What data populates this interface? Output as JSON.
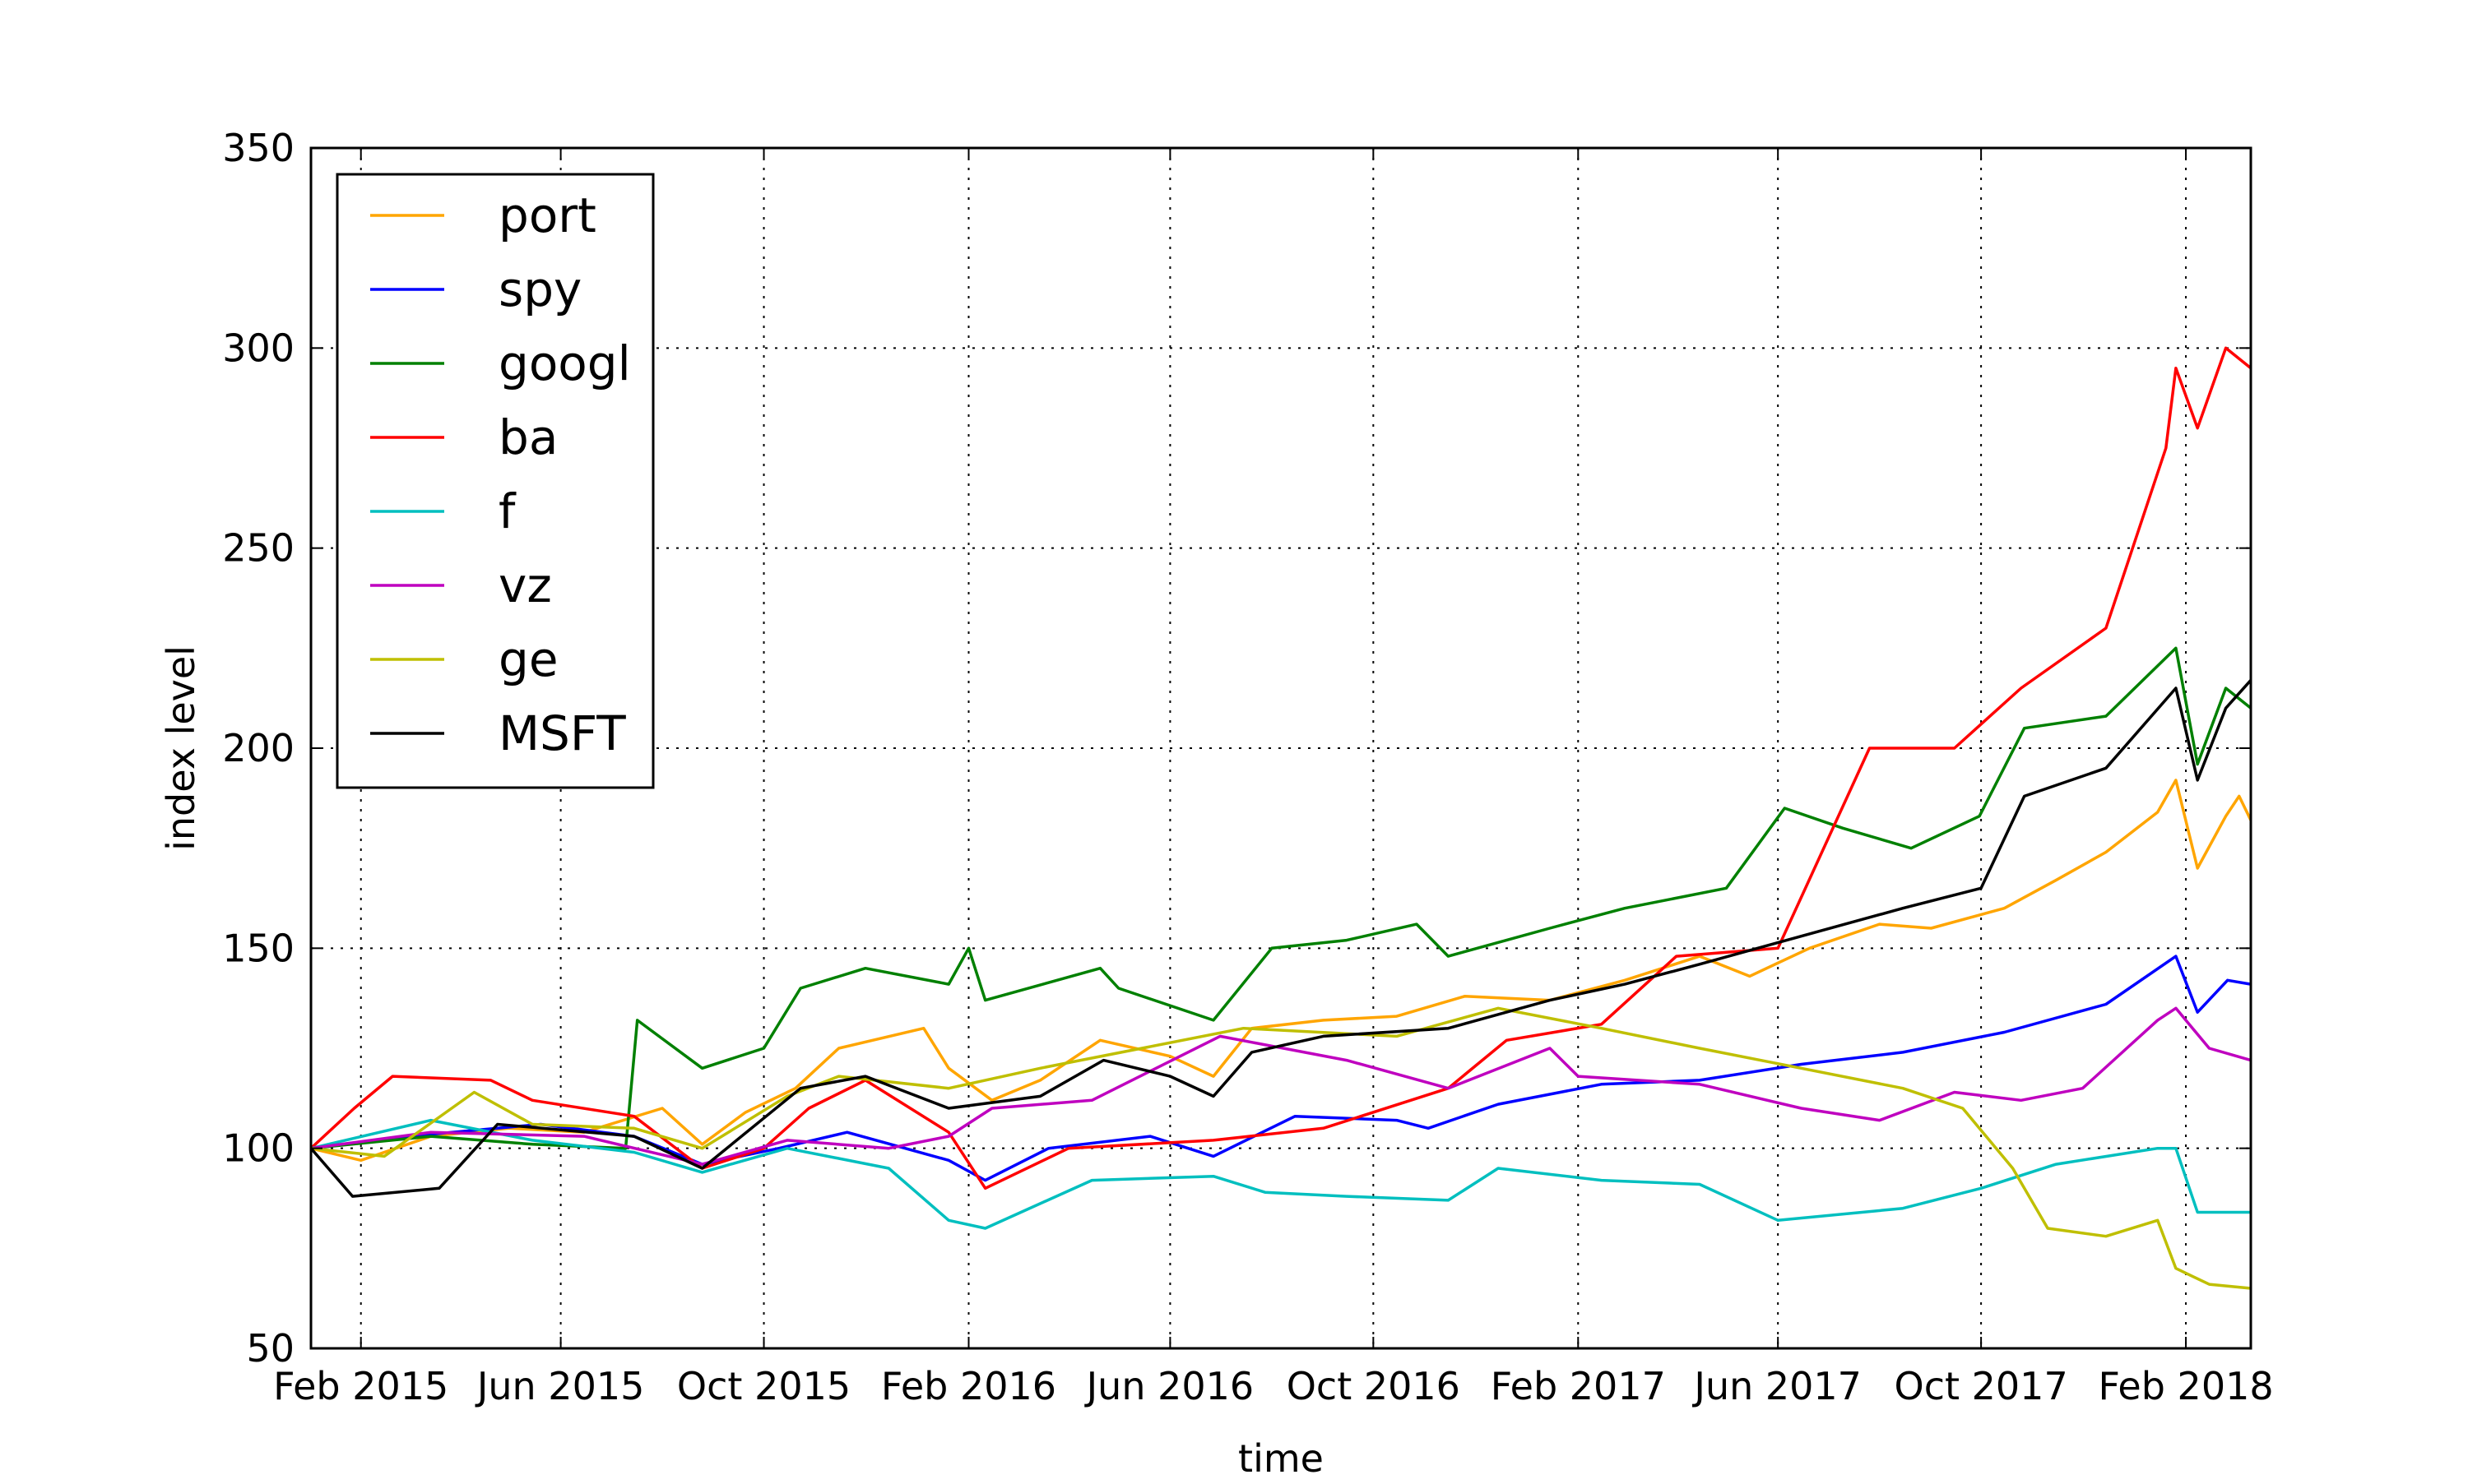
{
  "chart_data": {
    "type": "line",
    "title": "",
    "xlabel": "time",
    "ylabel": "index level",
    "ylim": [
      50,
      350
    ],
    "yticks": [
      50,
      100,
      150,
      200,
      250,
      300,
      350
    ],
    "xlim": [
      "2015-01-02",
      "2018-03-12"
    ],
    "xticks": [
      {
        "date": "2015-02-01",
        "label": "Feb 2015"
      },
      {
        "date": "2015-06-01",
        "label": "Jun 2015"
      },
      {
        "date": "2015-10-01",
        "label": "Oct 2015"
      },
      {
        "date": "2016-02-01",
        "label": "Feb 2016"
      },
      {
        "date": "2016-06-01",
        "label": "Jun 2016"
      },
      {
        "date": "2016-10-01",
        "label": "Oct 2016"
      },
      {
        "date": "2017-02-01",
        "label": "Feb 2017"
      },
      {
        "date": "2017-06-01",
        "label": "Jun 2017"
      },
      {
        "date": "2017-10-01",
        "label": "Oct 2017"
      },
      {
        "date": "2018-02-01",
        "label": "Feb 2018"
      }
    ],
    "grid": true,
    "legend_position": "top-left",
    "series": [
      {
        "name": "port",
        "color": "#ffa500",
        "points": [
          [
            "2015-01-02",
            100
          ],
          [
            "2015-02-01",
            97
          ],
          [
            "2015-03-15",
            103
          ],
          [
            "2015-05-01",
            105
          ],
          [
            "2015-06-15",
            104
          ],
          [
            "2015-08-01",
            110
          ],
          [
            "2015-08-25",
            101
          ],
          [
            "2015-09-20",
            109
          ],
          [
            "2015-10-20",
            115
          ],
          [
            "2015-11-15",
            125
          ],
          [
            "2016-01-05",
            130
          ],
          [
            "2016-01-20",
            120
          ],
          [
            "2016-02-15",
            112
          ],
          [
            "2016-03-15",
            117
          ],
          [
            "2016-04-20",
            127
          ],
          [
            "2016-06-01",
            123
          ],
          [
            "2016-06-27",
            118
          ],
          [
            "2016-07-20",
            130
          ],
          [
            "2016-09-01",
            132
          ],
          [
            "2016-10-15",
            133
          ],
          [
            "2016-11-25",
            138
          ],
          [
            "2017-01-15",
            137
          ],
          [
            "2017-03-01",
            142
          ],
          [
            "2017-04-15",
            148
          ],
          [
            "2017-05-15",
            143
          ],
          [
            "2017-06-20",
            150
          ],
          [
            "2017-08-01",
            156
          ],
          [
            "2017-09-01",
            155
          ],
          [
            "2017-10-15",
            160
          ],
          [
            "2017-11-15",
            167
          ],
          [
            "2017-12-15",
            174
          ],
          [
            "2018-01-15",
            184
          ],
          [
            "2018-01-26",
            192
          ],
          [
            "2018-02-08",
            170
          ],
          [
            "2018-02-25",
            183
          ],
          [
            "2018-03-05",
            188
          ],
          [
            "2018-03-12",
            182
          ]
        ]
      },
      {
        "name": "spy",
        "color": "#0000ff",
        "points": [
          [
            "2015-01-02",
            100
          ],
          [
            "2015-03-01",
            103
          ],
          [
            "2015-05-20",
            106
          ],
          [
            "2015-07-15",
            103
          ],
          [
            "2015-08-25",
            96
          ],
          [
            "2015-10-10",
            100
          ],
          [
            "2015-11-20",
            104
          ],
          [
            "2016-01-20",
            97
          ],
          [
            "2016-02-11",
            92
          ],
          [
            "2016-03-20",
            100
          ],
          [
            "2016-05-20",
            103
          ],
          [
            "2016-06-27",
            98
          ],
          [
            "2016-08-15",
            108
          ],
          [
            "2016-10-15",
            107
          ],
          [
            "2016-11-03",
            105
          ],
          [
            "2016-12-15",
            111
          ],
          [
            "2017-02-15",
            116
          ],
          [
            "2017-04-15",
            117
          ],
          [
            "2017-06-15",
            121
          ],
          [
            "2017-08-15",
            124
          ],
          [
            "2017-10-15",
            129
          ],
          [
            "2017-12-15",
            136
          ],
          [
            "2018-01-26",
            148
          ],
          [
            "2018-02-08",
            134
          ],
          [
            "2018-02-26",
            142
          ],
          [
            "2018-03-12",
            141
          ]
        ]
      },
      {
        "name": "googl",
        "color": "#008000",
        "points": [
          [
            "2015-01-02",
            100
          ],
          [
            "2015-03-15",
            103
          ],
          [
            "2015-05-15",
            101
          ],
          [
            "2015-07-10",
            100
          ],
          [
            "2015-07-17",
            132
          ],
          [
            "2015-08-25",
            120
          ],
          [
            "2015-10-01",
            125
          ],
          [
            "2015-10-23",
            140
          ],
          [
            "2015-12-01",
            145
          ],
          [
            "2016-01-20",
            141
          ],
          [
            "2016-02-01",
            150
          ],
          [
            "2016-02-11",
            137
          ],
          [
            "2016-04-20",
            145
          ],
          [
            "2016-05-01",
            140
          ],
          [
            "2016-06-27",
            132
          ],
          [
            "2016-08-01",
            150
          ],
          [
            "2016-09-15",
            152
          ],
          [
            "2016-10-27",
            156
          ],
          [
            "2016-11-15",
            148
          ],
          [
            "2017-01-15",
            155
          ],
          [
            "2017-03-01",
            160
          ],
          [
            "2017-05-01",
            165
          ],
          [
            "2017-06-05",
            185
          ],
          [
            "2017-07-10",
            180
          ],
          [
            "2017-08-20",
            175
          ],
          [
            "2017-09-30",
            183
          ],
          [
            "2017-10-27",
            205
          ],
          [
            "2017-12-15",
            208
          ],
          [
            "2018-01-26",
            225
          ],
          [
            "2018-02-08",
            196
          ],
          [
            "2018-02-25",
            215
          ],
          [
            "2018-03-12",
            210
          ]
        ]
      },
      {
        "name": "ba",
        "color": "#ff0000",
        "points": [
          [
            "2015-01-02",
            100
          ],
          [
            "2015-01-28",
            110
          ],
          [
            "2015-02-20",
            118
          ],
          [
            "2015-04-20",
            117
          ],
          [
            "2015-05-15",
            112
          ],
          [
            "2015-07-15",
            108
          ],
          [
            "2015-08-25",
            95
          ],
          [
            "2015-10-01",
            100
          ],
          [
            "2015-10-28",
            110
          ],
          [
            "2015-12-01",
            117
          ],
          [
            "2016-01-20",
            104
          ],
          [
            "2016-02-11",
            90
          ],
          [
            "2016-04-01",
            100
          ],
          [
            "2016-06-27",
            102
          ],
          [
            "2016-09-01",
            105
          ],
          [
            "2016-11-15",
            115
          ],
          [
            "2016-12-20",
            127
          ],
          [
            "2017-02-15",
            131
          ],
          [
            "2017-04-01",
            148
          ],
          [
            "2017-06-01",
            150
          ],
          [
            "2017-07-26",
            200
          ],
          [
            "2017-09-15",
            200
          ],
          [
            "2017-10-25",
            215
          ],
          [
            "2017-12-15",
            230
          ],
          [
            "2018-01-20",
            275
          ],
          [
            "2018-01-26",
            295
          ],
          [
            "2018-02-08",
            280
          ],
          [
            "2018-02-25",
            300
          ],
          [
            "2018-03-12",
            295
          ]
        ]
      },
      {
        "name": "f",
        "color": "#00bfbf",
        "points": [
          [
            "2015-01-02",
            100
          ],
          [
            "2015-03-15",
            107
          ],
          [
            "2015-05-15",
            102
          ],
          [
            "2015-07-15",
            99
          ],
          [
            "2015-08-25",
            94
          ],
          [
            "2015-10-15",
            100
          ],
          [
            "2015-12-15",
            95
          ],
          [
            "2016-01-20",
            82
          ],
          [
            "2016-02-11",
            80
          ],
          [
            "2016-04-15",
            92
          ],
          [
            "2016-06-27",
            93
          ],
          [
            "2016-07-28",
            89
          ],
          [
            "2016-09-15",
            88
          ],
          [
            "2016-11-15",
            87
          ],
          [
            "2016-12-15",
            95
          ],
          [
            "2017-02-15",
            92
          ],
          [
            "2017-04-15",
            91
          ],
          [
            "2017-06-01",
            82
          ],
          [
            "2017-08-15",
            85
          ],
          [
            "2017-10-01",
            90
          ],
          [
            "2017-11-15",
            96
          ],
          [
            "2018-01-15",
            100
          ],
          [
            "2018-01-26",
            100
          ],
          [
            "2018-02-08",
            84
          ],
          [
            "2018-03-12",
            84
          ]
        ]
      },
      {
        "name": "vz",
        "color": "#bf00bf",
        "points": [
          [
            "2015-01-02",
            100
          ],
          [
            "2015-03-15",
            104
          ],
          [
            "2015-06-15",
            103
          ],
          [
            "2015-08-25",
            96
          ],
          [
            "2015-10-15",
            102
          ],
          [
            "2015-12-15",
            100
          ],
          [
            "2016-01-20",
            103
          ],
          [
            "2016-02-15",
            110
          ],
          [
            "2016-04-15",
            112
          ],
          [
            "2016-07-01",
            128
          ],
          [
            "2016-09-15",
            122
          ],
          [
            "2016-11-15",
            115
          ],
          [
            "2017-01-15",
            125
          ],
          [
            "2017-02-01",
            118
          ],
          [
            "2017-04-15",
            116
          ],
          [
            "2017-06-15",
            110
          ],
          [
            "2017-08-01",
            107
          ],
          [
            "2017-09-15",
            114
          ],
          [
            "2017-10-25",
            112
          ],
          [
            "2017-12-01",
            115
          ],
          [
            "2018-01-15",
            132
          ],
          [
            "2018-01-26",
            135
          ],
          [
            "2018-02-15",
            125
          ],
          [
            "2018-03-12",
            122
          ]
        ]
      },
      {
        "name": "ge",
        "color": "#bfbf00",
        "points": [
          [
            "2015-01-02",
            100
          ],
          [
            "2015-02-15",
            98
          ],
          [
            "2015-04-10",
            114
          ],
          [
            "2015-05-15",
            106
          ],
          [
            "2015-07-15",
            105
          ],
          [
            "2015-08-25",
            100
          ],
          [
            "2015-10-15",
            113
          ],
          [
            "2015-11-15",
            118
          ],
          [
            "2016-01-20",
            115
          ],
          [
            "2016-03-15",
            120
          ],
          [
            "2016-05-15",
            125
          ],
          [
            "2016-07-15",
            130
          ],
          [
            "2016-10-15",
            128
          ],
          [
            "2016-12-15",
            135
          ],
          [
            "2017-02-15",
            130
          ],
          [
            "2017-04-15",
            125
          ],
          [
            "2017-06-15",
            120
          ],
          [
            "2017-08-15",
            115
          ],
          [
            "2017-09-20",
            110
          ],
          [
            "2017-10-20",
            95
          ],
          [
            "2017-11-10",
            80
          ],
          [
            "2017-12-15",
            78
          ],
          [
            "2018-01-15",
            82
          ],
          [
            "2018-01-26",
            70
          ],
          [
            "2018-02-15",
            66
          ],
          [
            "2018-03-12",
            65
          ]
        ]
      },
      {
        "name": "MSFT",
        "color": "#000000",
        "points": [
          [
            "2015-01-02",
            100
          ],
          [
            "2015-01-27",
            88
          ],
          [
            "2015-03-20",
            90
          ],
          [
            "2015-04-24",
            106
          ],
          [
            "2015-07-15",
            103
          ],
          [
            "2015-08-25",
            95
          ],
          [
            "2015-10-23",
            115
          ],
          [
            "2015-12-01",
            118
          ],
          [
            "2016-01-20",
            110
          ],
          [
            "2016-03-15",
            113
          ],
          [
            "2016-04-22",
            122
          ],
          [
            "2016-06-01",
            118
          ],
          [
            "2016-06-27",
            113
          ],
          [
            "2016-07-20",
            124
          ],
          [
            "2016-09-01",
            128
          ],
          [
            "2016-11-15",
            130
          ],
          [
            "2017-01-15",
            137
          ],
          [
            "2017-03-01",
            141
          ],
          [
            "2017-04-15",
            146
          ],
          [
            "2017-06-15",
            153
          ],
          [
            "2017-08-15",
            160
          ],
          [
            "2017-10-01",
            165
          ],
          [
            "2017-10-27",
            188
          ],
          [
            "2017-12-15",
            195
          ],
          [
            "2018-01-26",
            215
          ],
          [
            "2018-02-08",
            192
          ],
          [
            "2018-02-25",
            210
          ],
          [
            "2018-03-12",
            217
          ]
        ]
      }
    ]
  }
}
